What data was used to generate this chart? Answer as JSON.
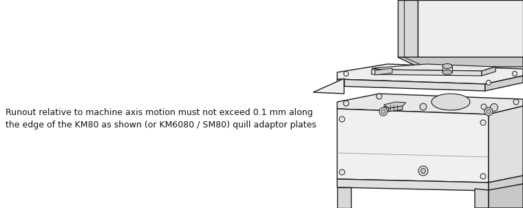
{
  "bg_color": "#ffffff",
  "text_line1": "Runout relative to machine axis motion must not exceed 0.1 mm along",
  "text_line2": "the edge of the KM80 as shown (or KM6080 / SM80) quill adaptor plates",
  "text_fontsize": 9.0,
  "text_color": "#111111",
  "fig_width": 7.6,
  "fig_height": 3.02,
  "line_color": "#1a1a1a",
  "lw": 1.0
}
